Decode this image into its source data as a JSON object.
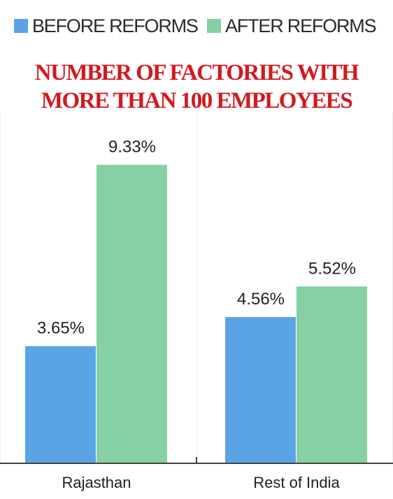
{
  "legend": {
    "before_label": "BEFORE REFORMS",
    "after_label": "AFTER REFORMS"
  },
  "title_line1": "NUMBER OF FACTORIES WITH",
  "title_line2": "MORE THAN 100 EMPLOYEES",
  "colors": {
    "before": "#5aa4e6",
    "after": "#86d0a3",
    "title": "#d3191f",
    "axis": "#444444",
    "grid": "#eeeeee"
  },
  "chart_data": {
    "type": "bar",
    "categories": [
      "Rajasthan",
      "Rest of India"
    ],
    "series": [
      {
        "name": "BEFORE REFORMS",
        "values": [
          3.65,
          4.56
        ],
        "labels": [
          "3.65%",
          "4.56%"
        ]
      },
      {
        "name": "AFTER REFORMS",
        "values": [
          9.33,
          5.52
        ],
        "labels": [
          "9.33%",
          "5.52%"
        ]
      }
    ],
    "title": "NUMBER OF FACTORIES WITH MORE THAN 100 EMPLOYEES",
    "xlabel": "",
    "ylabel": "",
    "ylim": [
      0,
      10
    ],
    "legend_position": "top"
  }
}
